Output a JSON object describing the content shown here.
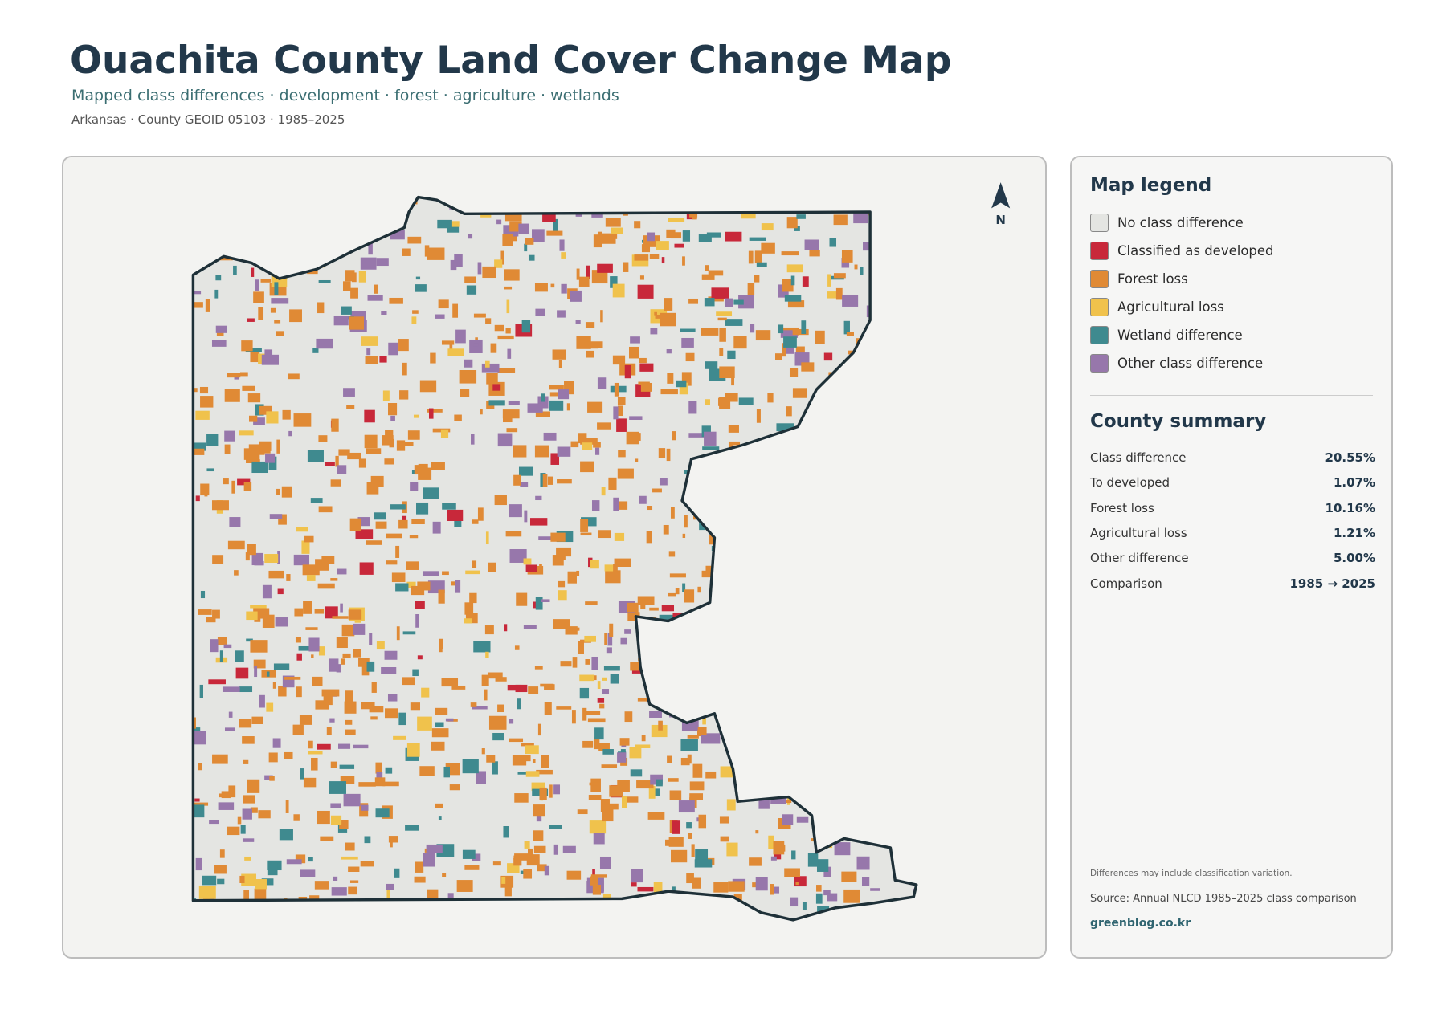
{
  "header": {
    "title": "Ouachita County Land Cover Change Map",
    "subtitle": "Mapped class differences · development · forest · agriculture · wetlands",
    "meta": "Arkansas · County GEOID 05103 · 1985–2025"
  },
  "map": {
    "north_label": "N"
  },
  "legend": {
    "title": "Map legend",
    "items": [
      {
        "label": "No class difference",
        "color": "#e4e5e2"
      },
      {
        "label": "Classified as developed",
        "color": "#c8283a"
      },
      {
        "label": "Forest loss",
        "color": "#e08a35"
      },
      {
        "label": "Agricultural loss",
        "color": "#f0c24c"
      },
      {
        "label": "Wetland difference",
        "color": "#3f8a8f"
      },
      {
        "label": "Other class difference",
        "color": "#9777ab"
      }
    ]
  },
  "summary": {
    "title": "County summary",
    "rows": [
      [
        "Class difference",
        "20.55%"
      ],
      [
        "To developed",
        "1.07%"
      ],
      [
        "Forest loss",
        "10.16%"
      ],
      [
        "Agricultural loss",
        "1.21%"
      ],
      [
        "Other difference",
        "5.00%"
      ],
      [
        "Comparison",
        "1985 → 2025"
      ]
    ]
  },
  "footer": {
    "note": "Differences may include classification variation.",
    "source": "Source: Annual NLCD 1985–2025 class comparison",
    "site": "greenblog.co.kr"
  }
}
